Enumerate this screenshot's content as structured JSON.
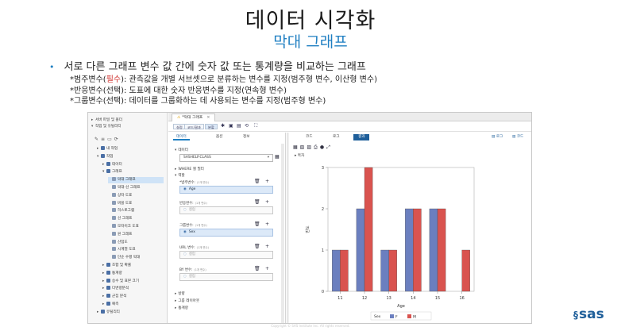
{
  "slide": {
    "title": "데이터 시각화",
    "subtitle": "막대 그래프",
    "bullet_main": "서로 다른 그래프 변수 값 간에 숫자 값 또는 통계량을 비교하는 그래프",
    "bullets": [
      {
        "prefix": "*범주변수(",
        "req": "필수",
        "rest": "): 관측값을 개별 서브셋으로 분류하는 변수를 지정(범주형 변수, 이산형 변수)"
      },
      {
        "prefix": "*반응변수(선택): 도표에 대한 숫자 반응변수를 지정(연속형 변수)",
        "req": "",
        "rest": ""
      },
      {
        "prefix": "*그룹변수(선택): 데이터를 그룹화하는 데 사용되는 변수를 지정(범주형 변수)",
        "req": "",
        "rest": ""
      }
    ],
    "footer": "Copyright © SAS Institute Inc. All rights reserved.",
    "logo_text": "sas"
  },
  "app": {
    "nav": {
      "items": [
        {
          "indent": 0,
          "twisty": "▸",
          "label": "서버 파일 및 폴더"
        },
        {
          "indent": 0,
          "twisty": "▾",
          "label": "작업 및 유틸리티"
        },
        {
          "indent": 1,
          "twisty": "▸",
          "label": "내 작업"
        },
        {
          "indent": 1,
          "twisty": "▾",
          "label": "작업"
        },
        {
          "indent": 2,
          "twisty": "▸",
          "label": "데이터"
        },
        {
          "indent": 2,
          "twisty": "▾",
          "label": "그래프"
        },
        {
          "indent": 3,
          "twisty": "",
          "label": "막대 그래프",
          "selected": true
        },
        {
          "indent": 3,
          "twisty": "",
          "label": "막대-선 그래프"
        },
        {
          "indent": 3,
          "twisty": "",
          "label": "상자 도표"
        },
        {
          "indent": 3,
          "twisty": "",
          "label": "버블 도표"
        },
        {
          "indent": 3,
          "twisty": "",
          "label": "히스토그램"
        },
        {
          "indent": 3,
          "twisty": "",
          "label": "선 그래프"
        },
        {
          "indent": 3,
          "twisty": "",
          "label": "모자이크 도표"
        },
        {
          "indent": 3,
          "twisty": "",
          "label": "원 그래프"
        },
        {
          "indent": 3,
          "twisty": "",
          "label": "산점도"
        },
        {
          "indent": 3,
          "twisty": "",
          "label": "시계열 도표"
        },
        {
          "indent": 3,
          "twisty": "",
          "label": "단순 수평 막대"
        },
        {
          "indent": 2,
          "twisty": "▸",
          "label": "조합 및 확률"
        },
        {
          "indent": 2,
          "twisty": "▸",
          "label": "통계량"
        },
        {
          "indent": 2,
          "twisty": "▸",
          "label": "승수 및 표본 크기"
        },
        {
          "indent": 2,
          "twisty": "▸",
          "label": "다변량분석"
        },
        {
          "indent": 2,
          "twisty": "▸",
          "label": "군집 분석"
        },
        {
          "indent": 2,
          "twisty": "▸",
          "label": "예측"
        },
        {
          "indent": 1,
          "twisty": "▸",
          "label": "유틸리티"
        }
      ]
    },
    "tab_title": "*막대 그래프",
    "view_buttons": [
      "설정",
      "코드/결과",
      "분할"
    ],
    "options": {
      "tabs": [
        "데이터",
        "옵션",
        "정보"
      ],
      "data_section": "데이터",
      "dataset": "SASHELP.CLASS",
      "where_section": "WHERE 절 필터",
      "roles_section": "역할",
      "category_label": "*범주변수:",
      "category_hint": "(1개 변수)",
      "category_value": "Age",
      "response_label": "반응변수:",
      "response_hint": "(1개 변수)",
      "response_placeholder": "컬럼",
      "group_label": "그룹변수:",
      "group_hint": "(1개 변수)",
      "group_value": "Sex",
      "url_label": "URL 변수:",
      "url_hint": "(1개 변수)",
      "url_placeholder": "컬럼",
      "by_label": "BY 변수:",
      "by_hint": "(1개 변수)",
      "by_placeholder": "컬럼",
      "sections_bottom": [
        "방향",
        "그룹 레이아웃",
        "통계량"
      ]
    },
    "results": {
      "tabs": [
        "코드",
        "로그",
        "결과"
      ],
      "right_buttons": [
        "로그",
        "코드"
      ],
      "section": "목차"
    }
  },
  "chart_data": {
    "type": "bar",
    "categories": [
      "11",
      "12",
      "13",
      "14",
      "15",
      "16"
    ],
    "series": [
      {
        "name": "F",
        "values": [
          1,
          2,
          1,
          2,
          2,
          0
        ],
        "color": "#6b7fbf"
      },
      {
        "name": "M",
        "values": [
          1,
          3,
          1,
          2,
          2,
          1
        ],
        "color": "#d9534f"
      }
    ],
    "xlabel": "Age",
    "ylabel": "빈도",
    "ylim": [
      0,
      3
    ],
    "yticks": [
      "0",
      "1",
      "2",
      "3"
    ],
    "legend_title": "Sex",
    "legend_position": "bottom",
    "grid": false
  }
}
